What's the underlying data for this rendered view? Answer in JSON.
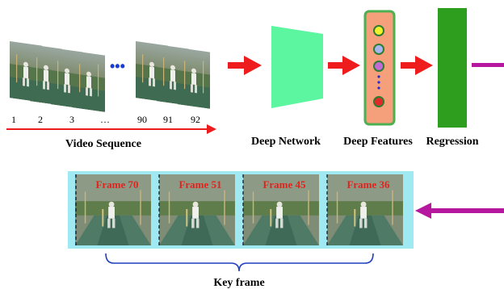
{
  "video_sequence": {
    "frame_numbers": [
      "1",
      "2",
      "3",
      "…",
      "90",
      "91",
      "92"
    ],
    "ellipsis": "•••",
    "label": "Video Sequence"
  },
  "network": {
    "label": "Deep Network"
  },
  "features": {
    "label": "Deep Features",
    "dot_ellipsis": "⋮"
  },
  "regression": {
    "label": "Regression"
  },
  "key_frames": {
    "frames": [
      {
        "label": "Frame 70"
      },
      {
        "label": "Frame 51"
      },
      {
        "label": "Frame 45"
      },
      {
        "label": "Frame 36"
      }
    ],
    "label": "Key frame"
  },
  "colors": {
    "arrow_red": "#ee1c1c",
    "arrow_magenta": "#b5179e",
    "network": "#5cf5a0",
    "features_box": "#f5a07a",
    "features_border": "#4caf50",
    "regression": "#2e9e1f",
    "key_frame_strip": "#9ee9f2",
    "frame_label": "#e0241c",
    "brace": "#1f3fbf"
  }
}
